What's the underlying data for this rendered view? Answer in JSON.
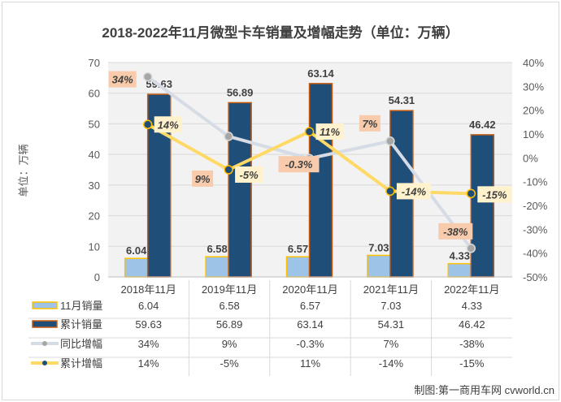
{
  "chart_data": {
    "type": "bar",
    "title": "2018-2022年11月微型卡车销量及增幅走势（单位：万辆）",
    "ylabel": "单位：万辆",
    "xlabel": "",
    "categories": [
      "2018年11月",
      "2019年11月",
      "2020年11月",
      "2021年11月",
      "2022年11月"
    ],
    "ylim": [
      0,
      70
    ],
    "y_ticks": [
      0,
      10,
      20,
      30,
      40,
      50,
      60,
      70
    ],
    "y2lim": [
      -50,
      40
    ],
    "y2_ticks": [
      "-50%",
      "-40%",
      "-30%",
      "-20%",
      "-10%",
      "0%",
      "10%",
      "20%",
      "30%",
      "40%"
    ],
    "y2_tick_values": [
      -50,
      -40,
      -30,
      -20,
      -10,
      0,
      10,
      20,
      30,
      40
    ],
    "grid": true,
    "legend": "bottom-table",
    "series": [
      {
        "name": "11月销量",
        "kind": "bar",
        "axis": "left",
        "color": "#9dc3e6",
        "border": "#ffc000",
        "values": [
          6.04,
          6.58,
          6.57,
          7.03,
          4.33
        ],
        "labels": [
          "6.04",
          "6.58",
          "6.57",
          "7.03",
          "4.33"
        ]
      },
      {
        "name": "累计销量",
        "kind": "bar",
        "axis": "left",
        "color": "#1f4e79",
        "border": "#c55a11",
        "values": [
          59.63,
          56.89,
          63.14,
          54.31,
          46.42
        ],
        "labels": [
          "59.63",
          "56.89",
          "63.14",
          "54.31",
          "46.42"
        ]
      },
      {
        "name": "同比增幅",
        "kind": "line",
        "axis": "right",
        "color": "#d6dce5",
        "marker": "#a6a6a6",
        "label_bg": "#f8cbad",
        "values": [
          34,
          9,
          -0.3,
          7,
          -38
        ],
        "labels": [
          "34%",
          "9%",
          "-0.3%",
          "7%",
          "-38%"
        ]
      },
      {
        "name": "累计增幅",
        "kind": "line",
        "axis": "right",
        "color": "#ffd966",
        "marker": "#1f4e79",
        "label_bg": "#fff2cc",
        "values": [
          14,
          -5,
          11,
          -14,
          -15
        ],
        "labels": [
          "14%",
          "-5%",
          "11%",
          "-14%",
          "-15%"
        ]
      }
    ],
    "table": {
      "rows": [
        {
          "name": "11月销量",
          "cells": [
            "6.04",
            "6.58",
            "6.57",
            "7.03",
            "4.33"
          ]
        },
        {
          "name": "累计销量",
          "cells": [
            "59.63",
            "56.89",
            "63.14",
            "54.31",
            "46.42"
          ]
        },
        {
          "name": "同比增幅",
          "cells": [
            "34%",
            "9%",
            "-0.3%",
            "7%",
            "-38%"
          ]
        },
        {
          "name": "累计增幅",
          "cells": [
            "14%",
            "-5%",
            "11%",
            "-14%",
            "-15%"
          ]
        }
      ]
    }
  },
  "credit": "制图:第一商用车网 cvworld.cn"
}
